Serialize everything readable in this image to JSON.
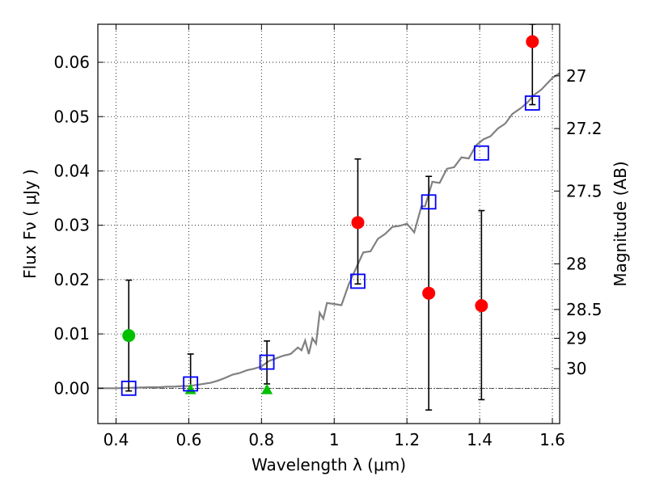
{
  "chart_data": {
    "type": "scatter",
    "xlabel": "Wavelength  λ (μm)",
    "ylabel": "Flux  Fν  ( μJy )",
    "y2label": "Magnitude (AB)",
    "xlim": [
      0.35,
      1.62
    ],
    "ylim": [
      -0.0065,
      0.067
    ],
    "grid": true,
    "x_ticks": [
      {
        "value": 0.4,
        "label": "0.4"
      },
      {
        "value": 0.6,
        "label": "0.6"
      },
      {
        "value": 0.8,
        "label": "0.8"
      },
      {
        "value": 1.0,
        "label": "1"
      },
      {
        "value": 1.2,
        "label": "1.2"
      },
      {
        "value": 1.4,
        "label": "1.4"
      },
      {
        "value": 1.6,
        "label": "1.6"
      }
    ],
    "y_ticks": [
      {
        "value": 0.0,
        "label": "0.00"
      },
      {
        "value": 0.01,
        "label": "0.01"
      },
      {
        "value": 0.02,
        "label": "0.02"
      },
      {
        "value": 0.03,
        "label": "0.03"
      },
      {
        "value": 0.04,
        "label": "0.04"
      },
      {
        "value": 0.05,
        "label": "0.05"
      },
      {
        "value": 0.06,
        "label": "0.06"
      }
    ],
    "y2_ticks": [
      {
        "flux": 0.0575,
        "label": "27"
      },
      {
        "flux": 0.0478,
        "label": "27.2"
      },
      {
        "flux": 0.0363,
        "label": "27.5"
      },
      {
        "flux": 0.0229,
        "label": "28"
      },
      {
        "flux": 0.0145,
        "label": "28.5"
      },
      {
        "flux": 0.0092,
        "label": "29"
      },
      {
        "flux": 0.0036,
        "label": "30"
      }
    ],
    "series": [
      {
        "kind": "model-spectrum",
        "color": "#808080",
        "x": [
          0.35,
          0.4,
          0.45,
          0.5,
          0.52,
          0.54,
          0.56,
          0.58,
          0.6,
          0.62,
          0.64,
          0.66,
          0.68,
          0.7,
          0.72,
          0.74,
          0.76,
          0.78,
          0.8,
          0.82,
          0.84,
          0.86,
          0.88,
          0.9,
          0.91,
          0.92,
          0.93,
          0.94,
          0.95,
          0.96,
          0.97,
          0.98,
          1.0,
          1.02,
          1.04,
          1.06,
          1.08,
          1.1,
          1.12,
          1.14,
          1.16,
          1.18,
          1.2,
          1.22,
          1.24,
          1.25,
          1.27,
          1.29,
          1.31,
          1.33,
          1.35,
          1.37,
          1.39,
          1.41,
          1.43,
          1.45,
          1.47,
          1.49,
          1.51,
          1.53,
          1.55,
          1.57,
          1.6,
          1.62
        ],
        "y": [
          0.0,
          0.0,
          0.0001,
          0.0002,
          0.0002,
          0.0003,
          0.0003,
          0.0004,
          0.0004,
          0.0006,
          0.0008,
          0.001,
          0.0014,
          0.0019,
          0.0025,
          0.0028,
          0.0033,
          0.0036,
          0.004,
          0.005,
          0.0055,
          0.006,
          0.0063,
          0.0075,
          0.007,
          0.0088,
          0.0063,
          0.0092,
          0.0082,
          0.0139,
          0.0128,
          0.0157,
          0.0155,
          0.0153,
          0.0191,
          0.0221,
          0.025,
          0.0252,
          0.0275,
          0.0284,
          0.0297,
          0.0299,
          0.0303,
          0.0287,
          0.0335,
          0.0335,
          0.038,
          0.0378,
          0.0404,
          0.0407,
          0.0425,
          0.0423,
          0.0447,
          0.0458,
          0.0464,
          0.0478,
          0.0487,
          0.0505,
          0.0514,
          0.0525,
          0.054,
          0.055,
          0.0571,
          0.058
        ]
      },
      {
        "kind": "red-circles",
        "color": "#ff0000",
        "x": [
          1.065,
          1.26,
          1.405,
          1.545
        ],
        "y": [
          0.0305,
          0.0175,
          0.0152,
          0.0638
        ],
        "yerr_low": [
          0.0192,
          -0.004,
          -0.0021,
          0.0522
        ],
        "yerr_high": [
          0.0422,
          0.039,
          0.0327,
          0.067
        ]
      },
      {
        "kind": "green-circles",
        "color": "#00c000",
        "x": [
          0.435
        ],
        "y": [
          0.0097
        ],
        "yerr_low": [
          -0.0005
        ],
        "yerr_high": [
          0.0199
        ]
      },
      {
        "kind": "green-triangles",
        "color": "#00c000",
        "x": [
          0.605,
          0.815
        ],
        "y": [
          -0.0002,
          -0.0002
        ],
        "yerr_low": [
          -0.0005,
          0.0008
        ],
        "yerr_high": [
          0.0063,
          0.0087
        ]
      },
      {
        "kind": "blue-squares",
        "color": "#0000ff",
        "x": [
          0.435,
          0.605,
          0.815,
          1.065,
          1.26,
          1.405,
          1.545
        ],
        "y": [
          0.0,
          0.0008,
          0.0048,
          0.0197,
          0.0343,
          0.0433,
          0.0525
        ]
      }
    ]
  }
}
